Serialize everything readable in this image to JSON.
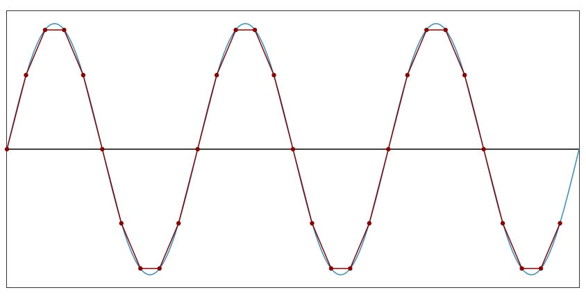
{
  "chart_data": {
    "type": "line",
    "title": "",
    "xlabel": "",
    "ylabel": "",
    "grid": false,
    "legend": "none",
    "xlim": [
      0,
      30
    ],
    "ylim": [
      -1.1,
      1.1
    ],
    "colors": {
      "continuous": "#2e8fbf",
      "sampled": "#8b0000",
      "axis": "#000000",
      "frame": "#333333"
    },
    "series": [
      {
        "role": "continuous-sine",
        "function": "sin",
        "period": 10,
        "amplitude": 1
      },
      {
        "role": "sampled",
        "x": [
          0,
          1,
          2,
          3,
          4,
          5,
          6,
          7,
          8,
          9,
          10,
          11,
          12,
          13,
          14,
          15,
          16,
          17,
          18,
          19,
          20,
          21,
          22,
          23,
          24,
          25,
          26,
          27,
          28,
          29
        ],
        "y": [
          0,
          0.59,
          0.95,
          0.95,
          0.59,
          0,
          -0.59,
          -0.95,
          -0.95,
          -0.59,
          0,
          0.59,
          0.95,
          0.95,
          0.59,
          0,
          -0.59,
          -0.95,
          -0.95,
          -0.59,
          0,
          0.59,
          0.95,
          0.95,
          0.59,
          0,
          -0.59,
          -0.95,
          -0.95,
          -0.59
        ]
      }
    ]
  }
}
